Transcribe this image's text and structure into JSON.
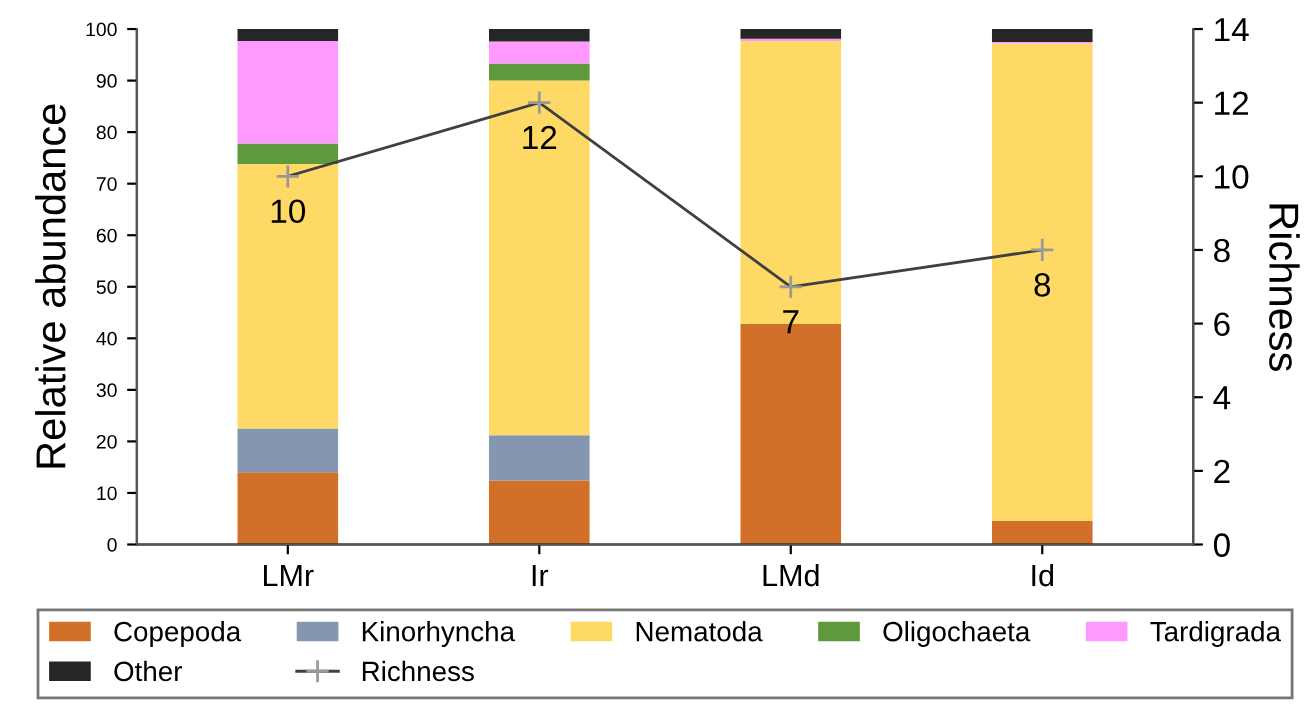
{
  "chart_data": {
    "type": "bar",
    "stacked": true,
    "ylabel": "Relative abundance",
    "y2label": "Richness",
    "categories": [
      "LMr",
      "Ir",
      "LMd",
      "Id"
    ],
    "series": [
      {
        "name": "Copepoda",
        "color": "#d2702a",
        "values": [
          14,
          12.4,
          42.8,
          4.6
        ]
      },
      {
        "name": "Kinorhyncha",
        "color": "#8496b0",
        "values": [
          8.5,
          8.8,
          0,
          0
        ]
      },
      {
        "name": "Nematoda",
        "color": "#ffd966",
        "values": [
          51.3,
          68.8,
          54.9,
          92.6
        ]
      },
      {
        "name": "Oligochaeta",
        "color": "#5e9a3c",
        "values": [
          4,
          3.3,
          0,
          0
        ]
      },
      {
        "name": "Tardigrada",
        "color": "#ff99ff",
        "values": [
          19.9,
          4.3,
          0.4,
          0.3
        ]
      },
      {
        "name": "Other",
        "color": "#262626",
        "values": [
          2.4,
          2.4,
          1.9,
          2.5
        ]
      },
      {
        "name": "Richness",
        "type": "line",
        "axis": "y2",
        "color": "#404040",
        "marker": "cross",
        "data_labels": true,
        "values": [
          10,
          12,
          7,
          8
        ]
      }
    ],
    "ylim": [
      0,
      100
    ],
    "yticks": [
      0,
      10,
      20,
      30,
      40,
      50,
      60,
      70,
      80,
      90,
      100
    ],
    "y2lim": [
      0,
      14
    ],
    "y2ticks": [
      0,
      2,
      4,
      6,
      8,
      10,
      12,
      14
    ],
    "legend": "bottom",
    "grid": false
  }
}
